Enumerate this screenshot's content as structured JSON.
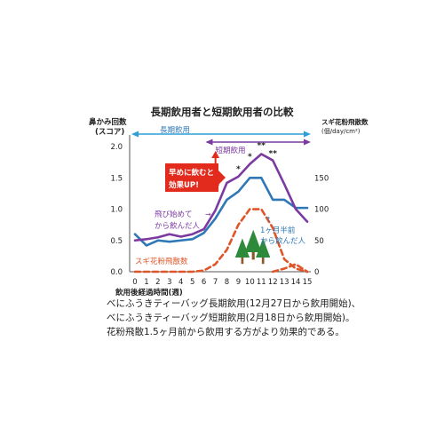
{
  "chart_data": {
    "type": "line",
    "title": "長期飲用者と短期飲用者の比較",
    "ylabel_lines": [
      "鼻かみ回数",
      "(スコア)"
    ],
    "y2label_lines": [
      "スギ花粉飛散数",
      "(個/day/cm²)"
    ],
    "xlabel": "飲用後経過時間(週)",
    "x": [
      0,
      1,
      2,
      3,
      4,
      5,
      6,
      7,
      8,
      9,
      10,
      11,
      12,
      13,
      14,
      15
    ],
    "ylim": [
      0,
      2.1
    ],
    "yticks": [
      "0.0",
      "0.5",
      "1.0",
      "1.5",
      "2.0"
    ],
    "y2lim": [
      0,
      210
    ],
    "y2ticks": [
      "0",
      "50",
      "100",
      "150"
    ],
    "series": [
      {
        "name": "長期飲用",
        "axis": "left",
        "color": "#2f78b7",
        "values": [
          0.6,
          0.42,
          0.5,
          0.48,
          0.5,
          0.52,
          0.62,
          0.85,
          1.15,
          1.28,
          1.5,
          1.5,
          1.15,
          1.15,
          1.02,
          1.02
        ]
      },
      {
        "name": "短期飲用",
        "axis": "left",
        "color": "#7b3aa0",
        "values": [
          0.5,
          0.52,
          0.55,
          0.6,
          0.56,
          0.6,
          0.68,
          0.98,
          1.42,
          1.52,
          1.72,
          1.88,
          1.78,
          1.4,
          1.0,
          0.8
        ]
      },
      {
        "name": "スギ花粉飛散数",
        "axis": "right",
        "color": "#e05528",
        "dashed": true,
        "values": [
          0,
          0,
          0,
          0,
          0,
          0,
          2,
          12,
          35,
          75,
          100,
          100,
          70,
          20,
          5,
          0
        ]
      },
      {
        "name": "",
        "axis": "right",
        "color": "#e05528",
        "dashed": true,
        "segment": true,
        "x": [
          12,
          13,
          14,
          15
        ],
        "values": [
          0,
          5,
          12,
          0
        ]
      }
    ],
    "annotations": {
      "long_bracket": "長期飲用",
      "short_bracket": "短期飲用",
      "callout_lines": [
        "早めに飲むと",
        "効果UP!"
      ],
      "early_label_lines": [
        "飛び始めて",
        "から飲んだ人"
      ],
      "early_arrow": "→",
      "late_label_lines": [
        "1ヶ月半前",
        "から飲んだ人"
      ],
      "late_arrow": "↑",
      "pollen_label": "スギ花粉飛散数",
      "star_single": "*",
      "star_double": "**",
      "star_positions": [
        {
          "x": 9,
          "y": 1.6,
          "text_key": "star_single"
        },
        {
          "x": 10,
          "y": 1.8,
          "text_key": "star_single"
        },
        {
          "x": 11,
          "y": 1.98,
          "text_key": "star_double"
        },
        {
          "x": 12,
          "y": 1.85,
          "text_key": "star_double"
        }
      ]
    },
    "caption_lines": [
      "べにふうきティーバッグ長期飲用(12月27日から飲用開始)、",
      "べにふうきティーバッグ短期飲用(2月18日から飲用開始)。",
      "花粉飛散1.5ヶ月前から飲用する方がより効果的である。"
    ]
  }
}
